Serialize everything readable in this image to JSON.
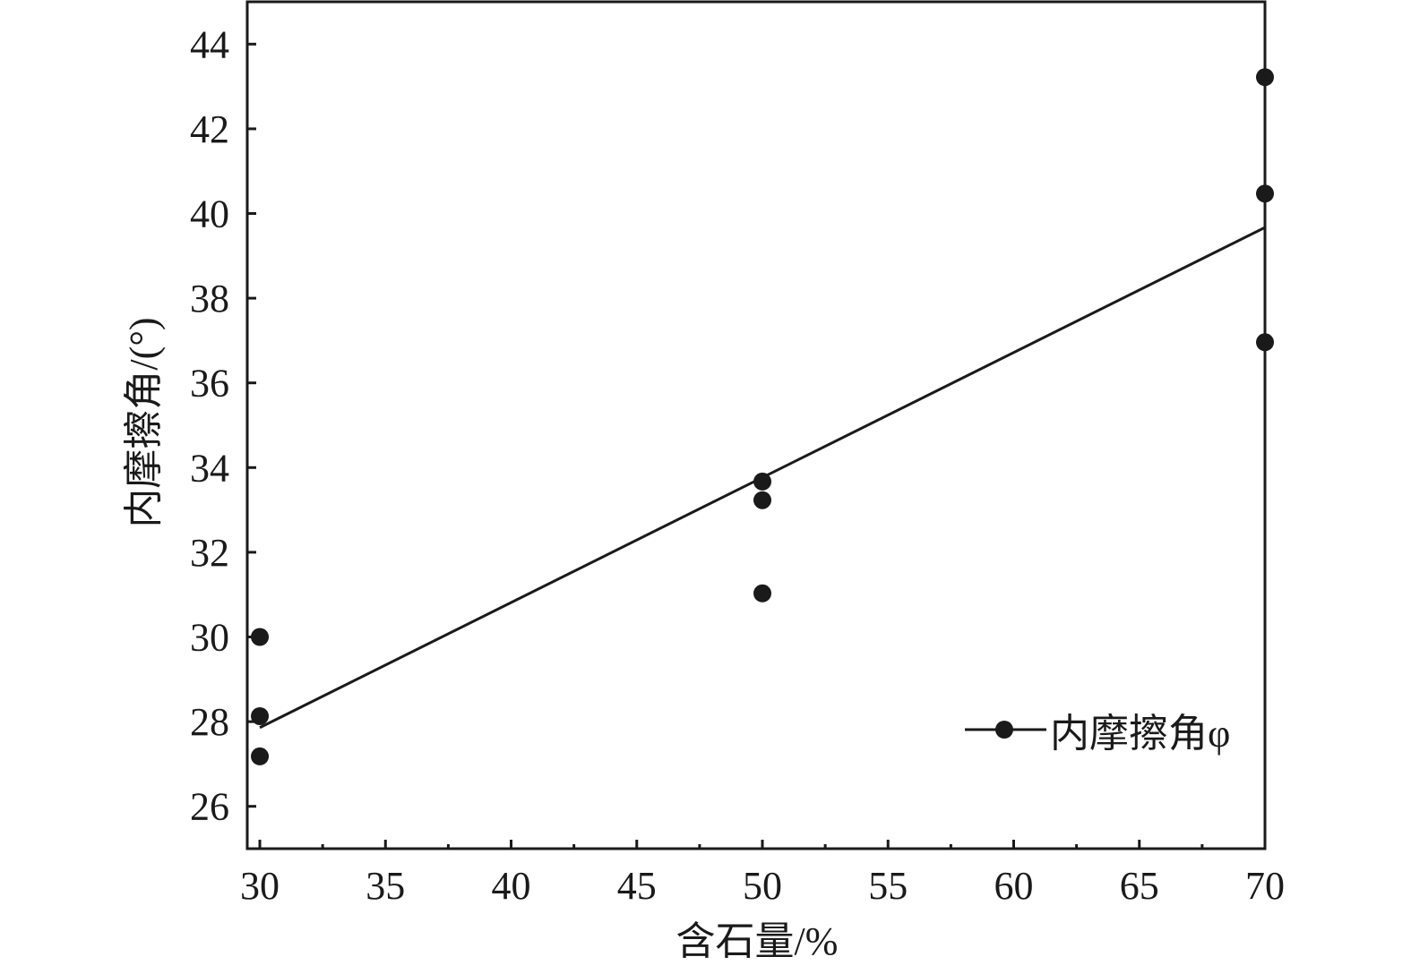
{
  "chart_data": {
    "type": "scatter",
    "xlabel": "含石量/%",
    "ylabel": "内摩擦角/(°)",
    "xlim": [
      29.5,
      70
    ],
    "ylim": [
      25,
      45
    ],
    "xticks": [
      30,
      35,
      40,
      45,
      50,
      55,
      60,
      65,
      70
    ],
    "yticks": [
      26,
      28,
      30,
      32,
      34,
      36,
      38,
      40,
      42,
      44
    ],
    "grid": false,
    "legend_position": "bottom-right",
    "series": [
      {
        "name": "内摩擦角φ",
        "color": "#1a1a1a",
        "points": [
          {
            "x": 30,
            "y": 30.0
          },
          {
            "x": 30,
            "y": 28.13
          },
          {
            "x": 30,
            "y": 27.18
          },
          {
            "x": 50,
            "y": 33.67
          },
          {
            "x": 50,
            "y": 33.23
          },
          {
            "x": 50,
            "y": 31.03
          },
          {
            "x": 70,
            "y": 43.22
          },
          {
            "x": 70,
            "y": 40.47
          },
          {
            "x": 70,
            "y": 36.96
          }
        ],
        "fit_line": [
          {
            "x": 30,
            "y": 27.86
          },
          {
            "x": 70,
            "y": 39.67
          }
        ]
      }
    ]
  }
}
